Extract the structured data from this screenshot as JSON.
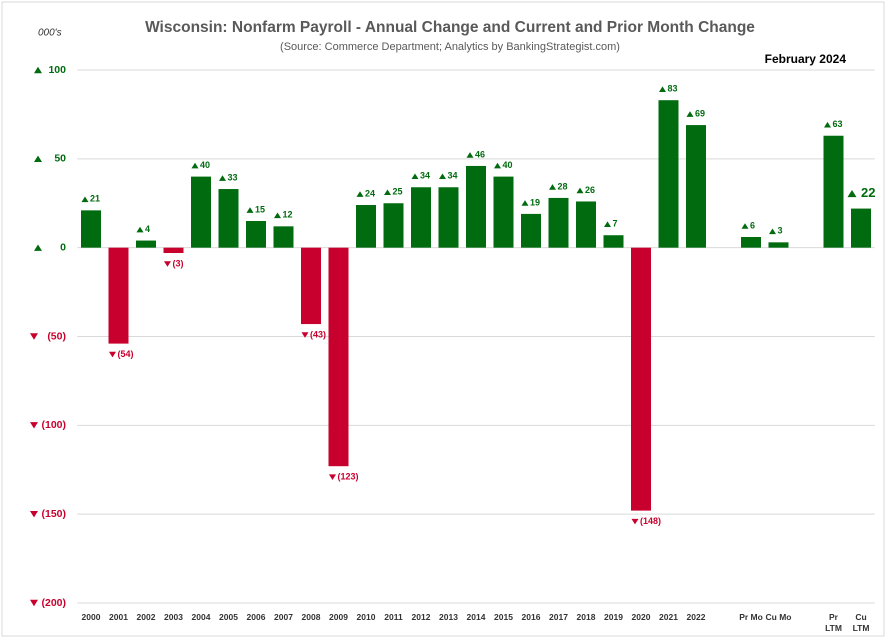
{
  "chart_data": {
    "type": "bar",
    "title": "Wisconsin:  Nonfarm Payroll - Annual Change and Current and Prior Month Change",
    "subtitle": "(Source: Commerce Department; Analytics by BankingStrategist.com)",
    "unit_label": "000's",
    "date_label": "February  2024",
    "categories": [
      "2000",
      "2001",
      "2002",
      "2003",
      "2004",
      "2005",
      "2006",
      "2007",
      "2008",
      "2009",
      "2010",
      "2011",
      "2012",
      "2013",
      "2014",
      "2015",
      "2016",
      "2017",
      "2018",
      "2019",
      "2020",
      "2021",
      "2022",
      null,
      "Pr Mo",
      "Cu Mo",
      null,
      "Pr LTM",
      "Cu LTM"
    ],
    "values": [
      21,
      -54,
      4,
      -3,
      40,
      33,
      15,
      12,
      -43,
      -123,
      24,
      25,
      34,
      34,
      46,
      40,
      19,
      28,
      26,
      7,
      -148,
      83,
      69,
      null,
      6,
      3,
      null,
      63,
      22
    ],
    "value_labels": [
      "21",
      "(54)",
      "4",
      "(3)",
      "40",
      "33",
      "15",
      "12",
      "(43)",
      "(123)",
      "24",
      "25",
      "34",
      "34",
      "46",
      "40",
      "19",
      "28",
      "26",
      "7",
      "(148)",
      "83",
      "69",
      null,
      "6",
      "3",
      null,
      "63",
      "22"
    ],
    "positive_color": "#006b0f",
    "negative_color": "#c8002d",
    "ylim": [
      -200,
      100
    ],
    "yticks": [
      {
        "value": -200,
        "label": "(200)"
      },
      {
        "value": -150,
        "label": "(150)"
      },
      {
        "value": -100,
        "label": "(100)"
      },
      {
        "value": -50,
        "label": "(50)"
      },
      0,
      50,
      100
    ],
    "grid": true
  }
}
